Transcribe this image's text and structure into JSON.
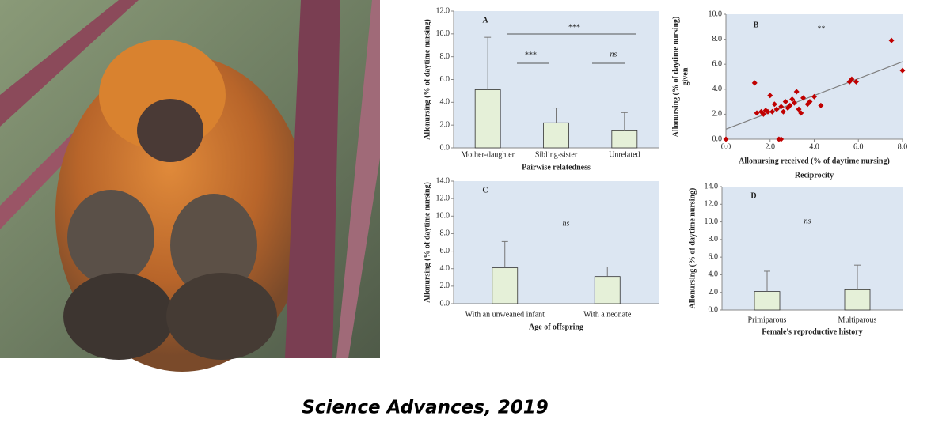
{
  "caption": "Science Advances,  2019",
  "chart_data": [
    {
      "type": "bar",
      "title": "A",
      "categories": [
        "Mother-daughter",
        "Sibling-sister",
        "Unrelated"
      ],
      "values": [
        5.1,
        2.2,
        1.5
      ],
      "errors": [
        4.6,
        1.3,
        1.6
      ],
      "color": "#e5f0d8",
      "ylim": [
        0,
        12
      ],
      "yticks": [
        {
          "value": 0,
          "label": "0.0"
        },
        {
          "value": 2,
          "label": "2.0"
        },
        {
          "value": 4,
          "label": "4.0"
        },
        {
          "value": 6,
          "label": "6.0"
        },
        {
          "value": 8,
          "label": "8.0"
        },
        {
          "value": 10,
          "label": "10.0"
        },
        {
          "value": 12,
          "label": "12.0"
        }
      ],
      "y_label": [
        "Allonursing  (% of daytime nursing)"
      ],
      "x_label": "Pairwise relatedness",
      "annotations": [
        "***",
        "***",
        "ns"
      ]
    },
    {
      "type": "scatter",
      "title": "B",
      "x": [
        0,
        1.3,
        1.4,
        1.6,
        1.7,
        1.8,
        1.9,
        2.0,
        2.1,
        2.2,
        2.3,
        2.4,
        2.5,
        2.5,
        2.6,
        2.7,
        2.8,
        2.9,
        3.0,
        3.1,
        3.2,
        3.3,
        3.4,
        3.5,
        3.7,
        3.8,
        4.0,
        4.3,
        5.6,
        5.7,
        5.9,
        7.5,
        8.0
      ],
      "values": [
        0,
        4.5,
        2.1,
        2.2,
        2.0,
        2.3,
        2.2,
        3.5,
        2.2,
        2.8,
        2.4,
        0,
        0,
        2.6,
        2.2,
        3.0,
        2.5,
        2.7,
        3.2,
        2.9,
        3.8,
        2.4,
        2.1,
        3.3,
        2.8,
        3.0,
        3.4,
        2.7,
        4.6,
        4.8,
        4.6,
        7.9,
        5.5
      ],
      "color": "#c00000",
      "trend_line": {
        "x": [
          0,
          8
        ],
        "y": [
          0.8,
          6.2
        ],
        "color": "#7f7f7f"
      },
      "xlim": [
        0,
        8
      ],
      "xticks": [
        {
          "value": 0,
          "label": "0.0"
        },
        {
          "value": 2,
          "label": "2.0"
        },
        {
          "value": 4,
          "label": "4.0"
        },
        {
          "value": 6,
          "label": "6.0"
        },
        {
          "value": 8,
          "label": "8.0"
        }
      ],
      "ylim": [
        0,
        10
      ],
      "yticks": [
        {
          "value": 0,
          "label": "0.0"
        },
        {
          "value": 2,
          "label": "2.0"
        },
        {
          "value": 4,
          "label": "4.0"
        },
        {
          "value": 6,
          "label": "6.0"
        },
        {
          "value": 8,
          "label": "8.0"
        },
        {
          "value": 10,
          "label": "10.0"
        }
      ],
      "y_label": [
        "Allonursing  (% of daytime nursing)",
        "given"
      ],
      "x_label": "Allonursing received  (% of daytime nursing)",
      "subtitle": "Reciprocity",
      "annotations": [
        "**"
      ]
    },
    {
      "type": "bar",
      "title": "C",
      "categories": [
        "With an unweaned infant",
        "With a neonate"
      ],
      "values": [
        4.1,
        3.1
      ],
      "errors": [
        3.0,
        1.1
      ],
      "color": "#e5f0d8",
      "ylim": [
        0,
        14
      ],
      "yticks": [
        {
          "value": 0,
          "label": "0.0"
        },
        {
          "value": 2,
          "label": "2.0"
        },
        {
          "value": 4,
          "label": "4.0"
        },
        {
          "value": 6,
          "label": "6.0"
        },
        {
          "value": 8,
          "label": "8.0"
        },
        {
          "value": 10,
          "label": "10.0"
        },
        {
          "value": 12,
          "label": "12.0"
        },
        {
          "value": 14,
          "label": "14.0"
        }
      ],
      "y_label": [
        "Allonursing  (% of daytime nursing)"
      ],
      "x_label": "Age of offspring",
      "annotations": [
        "ns"
      ]
    },
    {
      "type": "bar",
      "title": "D",
      "categories": [
        "Primiparous",
        "Multiparous"
      ],
      "values": [
        2.1,
        2.3
      ],
      "errors": [
        2.3,
        2.8
      ],
      "color": "#e5f0d8",
      "ylim": [
        0,
        14
      ],
      "yticks": [
        {
          "value": 0,
          "label": "0.0"
        },
        {
          "value": 2,
          "label": "2.0"
        },
        {
          "value": 4,
          "label": "4.0"
        },
        {
          "value": 6,
          "label": "6.0"
        },
        {
          "value": 8,
          "label": "8.0"
        },
        {
          "value": 10,
          "label": "10.0"
        },
        {
          "value": 12,
          "label": "12.0"
        },
        {
          "value": 14,
          "label": "14.0"
        }
      ],
      "y_label": [
        "Allonursing  (% of daytime nursing)"
      ],
      "x_label": "Female's reproductive history",
      "annotations": [
        "ns"
      ]
    }
  ]
}
